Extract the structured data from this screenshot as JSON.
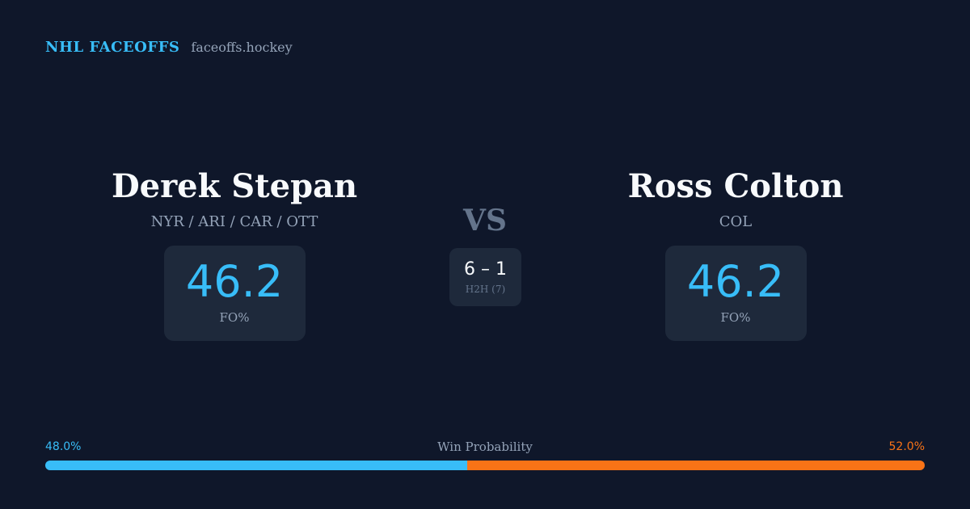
{
  "brand": {
    "title": "NHL FACEOFFS",
    "domain": "faceoffs.hockey"
  },
  "players": [
    {
      "name": "Derek Stepan",
      "teams": "NYR / ARI / CAR / OTT",
      "stat_value": "46.2",
      "stat_label": "FO%"
    },
    {
      "name": "Ross Colton",
      "teams": "COL",
      "stat_value": "46.2",
      "stat_label": "FO%"
    }
  ],
  "versus": "VS",
  "head_to_head": {
    "score": "6 – 1",
    "label": "H2H (7)"
  },
  "win_probability": {
    "title": "Win Probability",
    "left_label": "48.0%",
    "right_label": "52.0%",
    "left_fraction": 0.48,
    "right_fraction": 0.52
  },
  "colors": {
    "background": "#0f172a",
    "card": "#1e293b",
    "left_accent": "#38bdf8",
    "right_accent": "#f97316"
  }
}
